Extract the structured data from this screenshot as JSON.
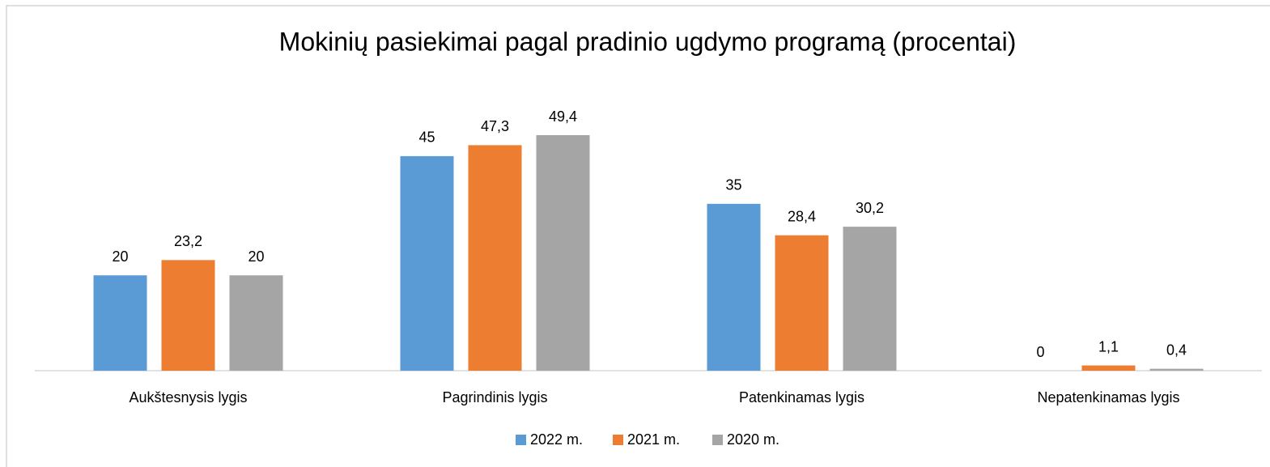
{
  "chart_data": {
    "type": "bar",
    "title": "Mokinių pasiekimai pagal pradinio ugdymo programą (procentai)",
    "categories": [
      "Aukštesnysis lygis",
      "Pagrindinis lygis",
      "Patenkinamas lygis",
      "Nepatenkinamas lygis"
    ],
    "series": [
      {
        "name": "2022 m.",
        "color": "#5b9bd5",
        "values": [
          20,
          45,
          35,
          0
        ],
        "value_labels": [
          "20",
          "45",
          "35",
          "0"
        ]
      },
      {
        "name": "2021 m.",
        "color": "#ed7d31",
        "values": [
          23.2,
          47.3,
          28.4,
          1.1
        ],
        "value_labels": [
          "23,2",
          "47,3",
          "28,4",
          "1,1"
        ]
      },
      {
        "name": "2020 m.",
        "color": "#a5a5a5",
        "values": [
          20,
          49.4,
          30.2,
          0.4
        ],
        "value_labels": [
          "20",
          "49,4",
          "30,2",
          "0,4"
        ]
      }
    ],
    "legend": "bottom"
  }
}
